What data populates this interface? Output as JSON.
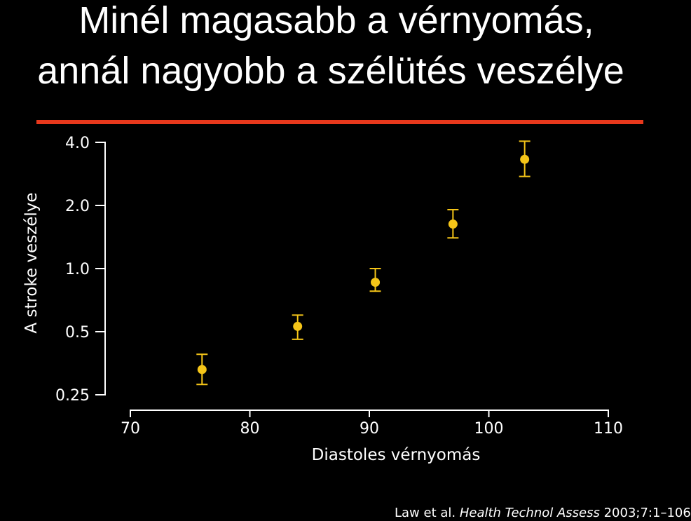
{
  "title_lines": [
    "Minél magasabb a vérnyomás,",
    "annál nagyobb a szélütés veszélye"
  ],
  "colors": {
    "background": "#000000",
    "accent_rule": "#e8381c",
    "points": "#f5c518",
    "text": "#ffffff"
  },
  "chart_data": {
    "type": "scatter",
    "title": "Minél magasabb a vérnyomás, annál nagyobb a szélütés veszélye",
    "xlabel": "Diastoles vérnyomás",
    "ylabel": "A  stroke veszélye",
    "y_scale": "log2",
    "xlim": [
      70,
      110
    ],
    "ylim": [
      0.25,
      4.0
    ],
    "x_ticks": [
      70,
      80,
      90,
      100,
      110
    ],
    "y_ticks": [
      0.25,
      0.5,
      1.0,
      2.0,
      4.0
    ],
    "x_tick_labels": [
      "70",
      "80",
      "90",
      "100",
      "110"
    ],
    "y_tick_labels": [
      "0.25",
      "0.5",
      "1.0",
      "2.0",
      "4.0"
    ],
    "grid": false,
    "legend": "none",
    "points": [
      {
        "x": 76,
        "y": 0.33,
        "lower": 0.28,
        "upper": 0.39
      },
      {
        "x": 84,
        "y": 0.53,
        "lower": 0.46,
        "upper": 0.6
      },
      {
        "x": 90.5,
        "y": 0.86,
        "lower": 0.78,
        "upper": 1.0
      },
      {
        "x": 97,
        "y": 1.63,
        "lower": 1.4,
        "upper": 1.91
      },
      {
        "x": 103,
        "y": 3.32,
        "lower": 2.75,
        "upper": 4.05
      }
    ]
  },
  "source": {
    "authors": "Law et al.",
    "journal": "Health Technol Assess",
    "ref": "2003;7:1–106"
  }
}
